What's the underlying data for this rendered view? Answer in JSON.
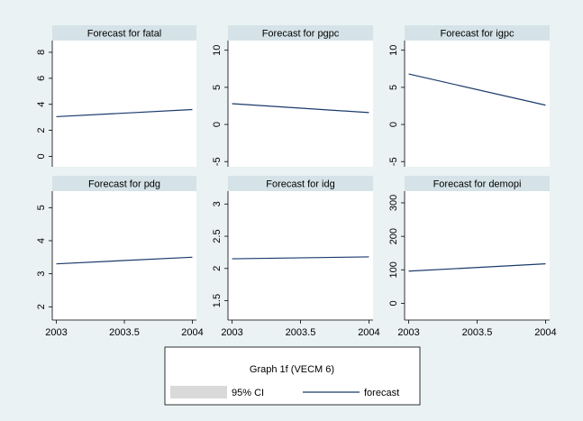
{
  "chart_data": [
    {
      "type": "line",
      "title": "Forecast for fatal",
      "x": [
        2003,
        2004
      ],
      "xlim": [
        2002.97,
        2004.03
      ],
      "series": [
        {
          "color": "#1a3a6b",
          "values": [
            3.05,
            3.6
          ]
        }
      ],
      "ylim": [
        -0.8,
        8.9
      ],
      "yticks": [
        0,
        2,
        4,
        6,
        8
      ]
    },
    {
      "type": "line",
      "title": "Forecast for pgpc",
      "x": [
        2003,
        2004
      ],
      "xlim": [
        2002.97,
        2004.03
      ],
      "series": [
        {
          "color": "#1a3a6b",
          "values": [
            2.8,
            1.6
          ]
        }
      ],
      "ylim": [
        -5.7,
        11.3
      ],
      "yticks": [
        -5,
        0,
        5,
        10
      ]
    },
    {
      "type": "line",
      "title": "Forecast for igpc",
      "x": [
        2003,
        2004
      ],
      "xlim": [
        2002.97,
        2004.03
      ],
      "series": [
        {
          "color": "#1a3a6b",
          "values": [
            6.8,
            2.6
          ]
        }
      ],
      "ylim": [
        -5.7,
        11.3
      ],
      "yticks": [
        -5,
        0,
        5,
        10
      ]
    },
    {
      "type": "line",
      "title": "Forecast for pdg",
      "x": [
        2003,
        2004
      ],
      "xlim": [
        2002.97,
        2004.03
      ],
      "xticks": [
        2003,
        2003.5,
        2004
      ],
      "series": [
        {
          "color": "#1a3a6b",
          "values": [
            3.3,
            3.5
          ]
        }
      ],
      "ylim": [
        1.6,
        5.5
      ],
      "yticks": [
        2,
        3,
        4,
        5
      ]
    },
    {
      "type": "line",
      "title": "Forecast for idg",
      "x": [
        2003,
        2004
      ],
      "xlim": [
        2002.97,
        2004.03
      ],
      "xticks": [
        2003,
        2003.5,
        2004
      ],
      "series": [
        {
          "color": "#1a3a6b",
          "values": [
            2.15,
            2.18
          ]
        }
      ],
      "ylim": [
        1.2,
        3.2
      ],
      "yticks": [
        1.5,
        2,
        2.5,
        3
      ]
    },
    {
      "type": "line",
      "title": "Forecast for demopi",
      "x": [
        2003,
        2004
      ],
      "xlim": [
        2002.97,
        2004.03
      ],
      "xticks": [
        2003,
        2003.5,
        2004
      ],
      "series": [
        {
          "color": "#1a3a6b",
          "values": [
            96,
            118
          ]
        }
      ],
      "ylim": [
        -50,
        335
      ],
      "yticks": [
        0,
        100,
        200,
        300
      ]
    }
  ],
  "legend": {
    "title": "Graph 1f (VECM 6)",
    "items": [
      {
        "name": "95% CI",
        "color": "#d9d9d9"
      },
      {
        "name": "forecast",
        "color": "#1a3a6b"
      }
    ]
  }
}
